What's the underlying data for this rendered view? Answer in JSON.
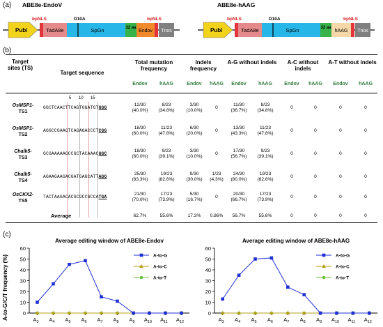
{
  "panel_a": {
    "label": "(a)",
    "construct_left": {
      "title": "ABE8e-EndoV",
      "blocks": [
        "Pubi",
        "TadA8e",
        "SpGn",
        "32 aa",
        "Endov",
        "Tnos"
      ],
      "markers": [
        "bpNLS",
        "D10A",
        "bpNLS"
      ]
    },
    "construct_right": {
      "title": "ABE8e-hAAG",
      "blocks": [
        "Pubi",
        "TadA8e",
        "SpGn",
        "32 aa",
        "hAAG",
        "Tnos"
      ],
      "markers": [
        "bpNLS",
        "D10A",
        "bpNLS"
      ]
    },
    "colors": {
      "pubi": "#f2d21b",
      "tada": "#e58a8a",
      "spgn": "#27b6e8",
      "aa32": "#37b34a",
      "endov": "#f08a2a",
      "haag": "#f5d7a8",
      "tnos": "#808080",
      "nls": "#e3343c"
    }
  },
  "panel_b": {
    "label": "(b)",
    "headers": {
      "target_sites": "Target sites (TS)",
      "target_sequence": "Target sequence",
      "total": "Total mutation frequency",
      "indels": "Indels frequency",
      "ag": "A-G without indels",
      "ac": "A-C without indels",
      "at": "A-T without indels"
    },
    "sub_headers": [
      "Endov",
      "hAAG",
      "Endov",
      "hAAG",
      "Endov",
      "hAAG",
      "Endov",
      "hAAG",
      "Endov",
      "hAAG"
    ],
    "position_marks": [
      "5",
      "10",
      "15"
    ],
    "rows": [
      {
        "gene": "OsMSP1-",
        "site": "TS1",
        "seq": "GGCTCAACTTCAGTGGATGT",
        "pam": "GGG",
        "cells": [
          [
            "12/30",
            "(40.0%)"
          ],
          [
            "8/23",
            "(34.8%)"
          ],
          [
            "3/30",
            "(10.0%)"
          ],
          [
            "0",
            ""
          ],
          [
            "11/30",
            "(36.7%)"
          ],
          [
            "8/23",
            "(34.8%)"
          ],
          [
            "0",
            ""
          ],
          [
            "0",
            ""
          ],
          [
            "0",
            ""
          ],
          [
            "0",
            ""
          ]
        ]
      },
      {
        "gene": "OsMSP1-",
        "site": "TS2",
        "seq": "AGGCCGAAGTCAGAGACCCT",
        "pam": "CGG",
        "cells": [
          [
            "18/30",
            "(60.0%)"
          ],
          [
            "11/23",
            "(47.8%)"
          ],
          [
            "6/30",
            "(20.0%)"
          ],
          [
            "0",
            ""
          ],
          [
            "13/30",
            "(43.3%)"
          ],
          [
            "11/23",
            "(47.8%)"
          ],
          [
            "0",
            ""
          ],
          [
            "0",
            ""
          ],
          [
            "0",
            ""
          ],
          [
            "0",
            ""
          ]
        ]
      },
      {
        "gene": "Chalk5-",
        "site": "TS3",
        "seq": "GCGAAAAAGCCGCTACAAAC",
        "pam": "GGC",
        "cells": [
          [
            "18/30",
            "(60.0%)"
          ],
          [
            "9/23",
            "(39.1%)"
          ],
          [
            "3/30",
            "(10.0%)"
          ],
          [
            "0",
            ""
          ],
          [
            "17/30",
            "(56.7%)"
          ],
          [
            "9/23",
            "(39.1%)"
          ],
          [
            "0",
            ""
          ],
          [
            "0",
            ""
          ],
          [
            "0",
            ""
          ],
          [
            "0",
            ""
          ]
        ]
      },
      {
        "gene": "Chalk5-",
        "site": "TS4",
        "seq": "AGAAGAAGACGATGAGCATT",
        "pam": "AGG",
        "cells": [
          [
            "25/30",
            "(83.3%)"
          ],
          [
            "19/23",
            "(82.6%)"
          ],
          [
            "9/30",
            "(30.0%)"
          ],
          [
            "1/23",
            "(4.3%)"
          ],
          [
            "24/30",
            "(80.0%)"
          ],
          [
            "19/23",
            "(82.6%)"
          ],
          [
            "0",
            ""
          ],
          [
            "0",
            ""
          ],
          [
            "0",
            ""
          ],
          [
            "0",
            ""
          ]
        ]
      },
      {
        "gene": "OsCKX2-",
        "site": "TS5",
        "seq": "TACTAAGACACGCGCCGCCA",
        "pam": "TGA",
        "cells": [
          [
            "21/30",
            "(70.0%)"
          ],
          [
            "17/23",
            "(73.9%)"
          ],
          [
            "5/30",
            "(16.7%)"
          ],
          [
            "0",
            ""
          ],
          [
            "20/30",
            "(66.7%)"
          ],
          [
            "17/23",
            "(73.9%)"
          ],
          [
            "0",
            ""
          ],
          [
            "0",
            ""
          ],
          [
            "0",
            ""
          ],
          [
            "0",
            ""
          ]
        ]
      }
    ],
    "average_label": "Average",
    "average": [
      "62.7%",
      "55.6%",
      "17.3%",
      "0.86%",
      "56.7%",
      "55.6%",
      "0",
      "0",
      "0",
      "0"
    ]
  },
  "panel_c": {
    "label": "(c)"
  },
  "chart_data": [
    {
      "type": "line",
      "title": "Average editing window of ABE8e-Endov",
      "ylabel": "A-to-G/C/T frequency (%)",
      "categories": [
        "A3",
        "A4",
        "A5",
        "A6",
        "A7",
        "A8",
        "A9",
        "A10",
        "A11",
        "A12"
      ],
      "ylim": [
        0,
        60
      ],
      "yticks": [
        0,
        10,
        20,
        30,
        40,
        50,
        60
      ],
      "legend_position": "top-right",
      "series": [
        {
          "name": "A-to-G",
          "color": "#1f2fd6",
          "marker": "square",
          "values": [
            10,
            27,
            45,
            48.5,
            15,
            11,
            0,
            0,
            0,
            0
          ]
        },
        {
          "name": "A-to-C",
          "color": "#b79f1a",
          "marker": "triangle",
          "values": [
            0,
            0,
            0,
            0,
            0,
            0,
            0,
            0,
            0,
            0
          ]
        },
        {
          "name": "A-to-T",
          "color": "#6abf3a",
          "marker": "circle",
          "values": [
            0,
            0,
            0,
            0,
            0,
            0,
            0,
            0,
            0,
            0
          ]
        }
      ]
    },
    {
      "type": "line",
      "title": "Average editing window of ABE8e-hAAG",
      "ylabel": "",
      "categories": [
        "A3",
        "A4",
        "A5",
        "A6",
        "A7",
        "A8",
        "A9",
        "A10",
        "A11",
        "A12"
      ],
      "ylim": [
        0,
        60
      ],
      "yticks": [
        0,
        10,
        20,
        30,
        40,
        50,
        60
      ],
      "legend_position": "top-right",
      "series": [
        {
          "name": "A-to-G",
          "color": "#1f2fd6",
          "marker": "square",
          "values": [
            13,
            35,
            50,
            51,
            24,
            17,
            0,
            0,
            0,
            0
          ]
        },
        {
          "name": "A-to-C",
          "color": "#b79f1a",
          "marker": "triangle",
          "values": [
            0,
            0,
            0,
            0,
            0,
            0,
            0,
            0,
            0,
            0
          ]
        },
        {
          "name": "A-to-T",
          "color": "#6abf3a",
          "marker": "circle",
          "values": [
            0,
            0,
            0,
            0,
            0,
            0,
            0,
            0,
            0,
            0
          ]
        }
      ]
    }
  ]
}
